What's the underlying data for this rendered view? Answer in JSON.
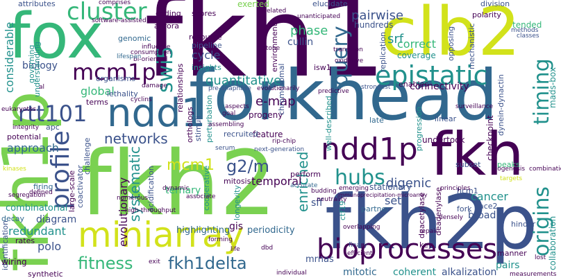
{
  "palette": {
    "purple": "#440154",
    "indigo": "#3b528b",
    "blue": "#31688e",
    "teal": "#21918c",
    "green": "#35b779",
    "lime": "#7ad151",
    "yellow": "#d2e21b",
    "gold": "#fde725"
  },
  "words": {
    "fkh1": "fkh1",
    "forkhead": "forkhead",
    "fkh2": "fkh2",
    "fkh2p": "fkh2p",
    "fkh1p": "fkh1p",
    "fox": "fox",
    "clb2": "clb2",
    "fkh": "fkh",
    "miniarray": "miniarray",
    "ndd1": "ndd1",
    "ndd1p": "ndd1p",
    "bioprocesses": "bioprocesses",
    "epistatic": "epistatic",
    "cluster": "cluster",
    "mcm1p": "mcm1p",
    "rtt101": "rtt101",
    "profile": "profile",
    "timing": "timing",
    "origins": "origins",
    "query": "query",
    "hubs": "hubs",
    "fitness": "fitness",
    "fkh1delta": "fkh1delta",
    "g2m": "g2/m",
    "mcm1": "mcm1",
    "networks": "networks",
    "swi5": "swi5",
    "quantitative": "quantitative",
    "phase": "phase",
    "pairwise": "pairwise",
    "srf": "srf",
    "cycle": "cycle",
    "approach": "approach",
    "considerable": "considerable",
    "digenic": "digenic",
    "cancer": "cancer",
    "sets": "sets",
    "enriched": "enriched",
    "systematic": "systematic",
    "evolutionary": "evolutionary",
    "temporal": "temporal",
    "emap": "e-map",
    "polo": "polo",
    "redundant": "redundant",
    "connectivity": "connectivity",
    "global": "global",
    "mitotic": "mitotic",
    "coherent": "coherent",
    "alkalization": "alkalization",
    "sff": "sff",
    "ternary": "ternary",
    "biology": "biology",
    "combinatorial": "combinatorial",
    "diagram": "diagram",
    "mrnas": "mrnas",
    "periodicity": "periodicity",
    "highlighting": "highlighting",
    "gis": "gis",
    "pairs": "pairs",
    "undertook": "undertook",
    "collaboration": "collaboration",
    "madsbox": "mads-box",
    "correct": "correct",
    "coverage": "coverage",
    "progeny": "progeny",
    "feature": "feature",
    "hundreds": "hundreds",
    "division": "division",
    "polarity": "polarity",
    "cullin": "cullin",
    "elucidate": "elucidate",
    "exerted": "exerted",
    "scores": "scores",
    "coding": "coding",
    "aurora": "aurora",
    "genomic": "genomic",
    "organisms": "organisms",
    "resource": "resource",
    "pipeline": "pipeline",
    "insights": "insights",
    "lethality": "lethality",
    "terms": "terms",
    "apc": "apc",
    "potential": "potential",
    "firing": "firing",
    "decay": "decay",
    "identification": "identification",
    "wiring": "wiring",
    "synthetic": "synthetic",
    "attributes": "attributes",
    "challenge": "challenge",
    "largescale": "large-scale",
    "coactivator": "coactivator",
    "acidification": "acidification",
    "longevity": "longevity",
    "mitosis": "mitosis",
    "cooperative": "cooperative",
    "perturbation": "perturbation",
    "stimuli": "stimuli",
    "relationships": "relationships",
    "orthologs": "orthologs",
    "stationary": "stationary",
    "perform": "perform",
    "partner": "partner",
    "late": "late",
    "linear": "linear",
    "hcm1": "hcm1",
    "fork": "fork",
    "key": "key",
    "deacetylase": "deacetylase",
    "deadenylase": "deadenylase",
    "broad": "broad",
    "ace2": "ace2",
    "peaks": "peaks",
    "hinder": "hinder",
    "manner": "manner",
    "subset": "subset",
    "rates": "rates",
    "understanding": "understanding",
    "governing": "governing",
    "checkpoint": "checkpoint",
    "dyneindynactin": "dynein-dynactin",
    "mechanistic": "mechanistic",
    "opposing": "opposing",
    "replication": "replication",
    "isw1": "isw1",
    "environment": "environment",
    "chromosomal": "chromosomal",
    "wellDescribed": "well-described",
    "progression": "progression",
    "ctf19": "ctf19",
    "enables": "enables",
    "strongest": "strongest",
    "surveillance": "surveillance",
    "finally": "finally",
    "tended": "tended",
    "methods": "methods",
    "classes": "classes",
    "biogenesis": "biogenesis",
    "targets": "targets",
    "combination": "combination",
    "densely": "densely",
    "repair": "repair",
    "transition": "transition",
    "dynamic": "dynamic",
    "accurate": "accurate",
    "serum": "serum",
    "ripchip": "rip-chip",
    "nextgeneration": "next-generation",
    "preanaphase": "pre-anaphase",
    "evolutionarily": "evolutionarily",
    "goal": "goal",
    "recruited": "recruited",
    "softwareassisted": "software-assisted",
    "influence": "influence",
    "consumption": "consumption",
    "bioriented": "bi-oriented",
    "lifespan": "lifespan",
    "damage": "damage",
    "unanticipated": "unanticipated",
    "isrelated": "is-related",
    "eukaryotes": "eukaryotes",
    "integrity": "integrity",
    "defined": "defined",
    "kinases": "kinases",
    "associate": "associate",
    "highthroughput": "high-throughput",
    "dbd": "dbd",
    "individual": "individual",
    "budding": "budding",
    "emerging": "emerging",
    "neutrality": "neutrality",
    "principles": "principles",
    "measurements": "measurements",
    "efficient": "efficient",
    "lost": "lost",
    "life": "life",
    "forming": "forming",
    "predictive": "predictive",
    "histone": "histone",
    "assembling": "assembling",
    "aspects": "aspects",
    "overlapping": "overlapping",
    "oxidative": "oxidative",
    "segregation": "segregation",
    "cyclins": "cyclins",
    "immunoprecipitation": "immunoprecipitation-microarray",
    "comprises": "comprises",
    "numerous": "numerous",
    "al": "al",
    "exit": "exit"
  }
}
